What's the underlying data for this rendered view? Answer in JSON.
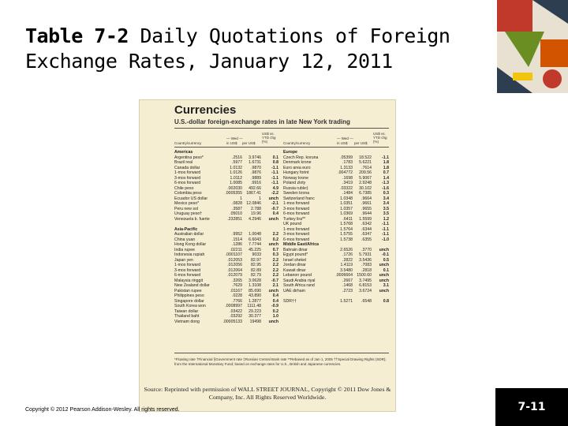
{
  "slide": {
    "title_num": "Table 7-2",
    "title_rest": " Daily Quotations of Foreign Exchange Rates, January 12, 2011",
    "copyright": "Copyright © 2012 Pearson Addison-Wesley. All rights reserved.",
    "page_number": "7-11",
    "accent_colors": [
      "#c0392b",
      "#6b8e23",
      "#2c3e50",
      "#d35400"
    ]
  },
  "scan": {
    "title": "Currencies",
    "subtitle": "U.S.-dollar foreign-exchange rates in late New York trading",
    "col_headers": {
      "country": "Country/currency",
      "wed": "— Wed —",
      "in_us": "in US$",
      "per_us": "per US$",
      "ytd": "US$ vs. YTD chg (%)"
    },
    "left": [
      {
        "name": "Americas",
        "sec": true
      },
      {
        "name": "Argentina peso*",
        "v1": ".2516",
        "v2": "3.9746",
        "v3": "0.1"
      },
      {
        "name": "Brazil real",
        "v1": ".5977",
        "v2": "1.6731",
        "v3": "0.8"
      },
      {
        "name": "Canada dollar",
        "v1": "1.0132",
        "v2": ".9870",
        "v3": "-1.1"
      },
      {
        "name": "1-mos forward",
        "v1": "1.0126",
        "v2": ".9876",
        "v3": "-1.1"
      },
      {
        "name": "3-mos forward",
        "v1": "1.0112",
        "v2": ".9889",
        "v3": "-1.1"
      },
      {
        "name": "6-mos forward",
        "v1": "1.0085",
        "v2": ".9916",
        "v3": "-1.1"
      },
      {
        "name": "Chile peso",
        "v1": ".002030",
        "v2": "492.66",
        "v3": "4.9"
      },
      {
        "name": "Colombia peso",
        "v1": ".0005355",
        "v2": "1867.41",
        "v3": "-2.2"
      },
      {
        "name": "Ecuador US dollar",
        "v1": "1",
        "v2": "1",
        "v3": "unch"
      },
      {
        "name": "Mexico peso*",
        "v1": ".0828",
        "v2": "12.0846",
        "v3": "-2.1"
      },
      {
        "name": "Peru new sol",
        "v1": ".3587",
        "v2": "2.788",
        "v3": "-0.7"
      },
      {
        "name": "Uruguay peso†",
        "v1": ".05010",
        "v2": "19.96",
        "v3": "0.4"
      },
      {
        "name": "Venezuela b. fuerte",
        "v1": ".232851",
        "v2": "4.2946",
        "v3": "unch"
      },
      {
        "name": "",
        "sec": true
      },
      {
        "name": "Asia-Pacific",
        "sec": true
      },
      {
        "name": "Australian dollar",
        "v1": ".9952",
        "v2": "1.0048",
        "v3": "2.2"
      },
      {
        "name": "China yuan",
        "v1": ".1514",
        "v2": "6.6043",
        "v3": "0.2"
      },
      {
        "name": "Hong Kong dollar",
        "v1": ".1286",
        "v2": "7.7744",
        "v3": "unch"
      },
      {
        "name": "India rupee",
        "v1": ".02211",
        "v2": "45.225",
        "v3": "0.7"
      },
      {
        "name": "Indonesia rupiah",
        "v1": ".0001107",
        "v2": "9033",
        "v3": "0.3"
      },
      {
        "name": "Japan yen",
        "v1": ".012053",
        "v2": "82.97",
        "v3": "2.2"
      },
      {
        "name": "1-mos forward",
        "v1": ".012056",
        "v2": "82.95",
        "v3": "2.2"
      },
      {
        "name": "3-mos forward",
        "v1": ".012064",
        "v2": "82.89",
        "v3": "2.2"
      },
      {
        "name": "6-mos forward",
        "v1": ".012079",
        "v2": "82.79",
        "v3": "2.2"
      },
      {
        "name": "Malaysia ringgit",
        "v1": ".3265",
        "v2": "3.0628",
        "v3": "-0.7"
      },
      {
        "name": "New Zealand dollar",
        "v1": ".7629",
        "v2": "1.3108",
        "v3": "2.1"
      },
      {
        "name": "Pakistan rupee",
        "v1": ".01167",
        "v2": "85.690",
        "v3": "unch"
      },
      {
        "name": "Philippines peso",
        "v1": ".0228",
        "v2": "43.890",
        "v3": "0.4"
      },
      {
        "name": "Singapore dollar",
        "v1": ".7766",
        "v2": "1.2877",
        "v3": "0.4"
      },
      {
        "name": "South Korea won",
        "v1": ".0008997",
        "v2": "1111.48",
        "v3": "-0.9"
      },
      {
        "name": "Taiwan dollar",
        "v1": ".03422",
        "v2": "29.223",
        "v3": "0.2"
      },
      {
        "name": "Thailand baht",
        "v1": ".03292",
        "v2": "30.377",
        "v3": "1.0"
      },
      {
        "name": "Vietnam dong",
        "v1": ".00005133",
        "v2": "19498",
        "v3": "unch"
      }
    ],
    "right": [
      {
        "name": "Europe",
        "sec": true
      },
      {
        "name": "Czech Rep. koruna",
        "v1": ".05399",
        "v2": "18.522",
        "v3": "-1.1"
      },
      {
        "name": "Denmark krone",
        "v1": ".1783",
        "v2": "5.6221",
        "v3": "1.8"
      },
      {
        "name": "Euro area euro",
        "v1": "1.3133",
        "v2": ".7614",
        "v3": "1.8"
      },
      {
        "name": "Hungary forint",
        "v1": ".004772",
        "v2": "209.56",
        "v3": "0.7"
      },
      {
        "name": "Norway krone",
        "v1": ".1698",
        "v2": "5.9067",
        "v3": "1.4"
      },
      {
        "name": "Poland zloty",
        "v1": ".3419",
        "v2": "2.9248",
        "v3": "-1.3"
      },
      {
        "name": "Russia ruble‡",
        "v1": ".03322",
        "v2": "30.102",
        "v3": "-1.6"
      },
      {
        "name": "Sweden krona",
        "v1": ".1484",
        "v2": "6.7385",
        "v3": "0.3"
      },
      {
        "name": "Switzerland franc",
        "v1": "1.0348",
        "v2": ".9664",
        "v3": "3.4"
      },
      {
        "name": "1-mos forward",
        "v1": "1.0351",
        "v2": ".9661",
        "v3": "3.4"
      },
      {
        "name": "3-mos forward",
        "v1": "1.0357",
        "v2": ".9655",
        "v3": "3.5"
      },
      {
        "name": "6-mos forward",
        "v1": "1.0369",
        "v2": ".9644",
        "v3": "3.5"
      },
      {
        "name": "Turkey lira**",
        "v1": ".6411",
        "v2": "1.5599",
        "v3": "1.2"
      },
      {
        "name": "UK pound",
        "v1": "1.5768",
        "v2": ".6342",
        "v3": "-1.1"
      },
      {
        "name": "1-mos forward",
        "v1": "1.5764",
        "v2": ".6344",
        "v3": "-1.1"
      },
      {
        "name": "3-mos forward",
        "v1": "1.5755",
        "v2": ".6347",
        "v3": "-1.1"
      },
      {
        "name": "6-mos forward",
        "v1": "1.5738",
        "v2": ".6355",
        "v3": "-1.0"
      },
      {
        "name": "Middle East/Africa",
        "sec": true
      },
      {
        "name": "Bahrain dinar",
        "v1": "2.6526",
        "v2": ".3770",
        "v3": "unch"
      },
      {
        "name": "Egypt pound*",
        "v1": ".1726",
        "v2": "5.7931",
        "v3": "-0.1"
      },
      {
        "name": "Israel shekel",
        "v1": ".2822",
        "v2": "3.5436",
        "v3": "0.5"
      },
      {
        "name": "Jordan dinar",
        "v1": "1.4119",
        "v2": ".7083",
        "v3": "unch"
      },
      {
        "name": "Kuwait dinar",
        "v1": "3.5480",
        "v2": ".2818",
        "v3": "0.1"
      },
      {
        "name": "Lebanon pound",
        "v1": ".0006664",
        "v2": "1500.60",
        "v3": "unch"
      },
      {
        "name": "Saudi Arabia riyal",
        "v1": ".2667",
        "v2": "3.7495",
        "v3": "unch"
      },
      {
        "name": "South Africa rand",
        "v1": ".1468",
        "v2": "6.8153",
        "v3": "3.1"
      },
      {
        "name": "UAE dirham",
        "v1": ".2723",
        "v2": "3.6724",
        "v3": "unch"
      },
      {
        "name": "",
        "sec": true
      },
      {
        "name": "SDR††",
        "v1": "1.5271",
        "v2": ".6548",
        "v3": "0.8"
      }
    ],
    "footnote": "*Floating rate †Financial §Government rate ‡Russian Central Bank rate **Rebased as of Jan 1, 2005 ††Special Drawing Rights (SDR); from the International Monetary Fund; based on exchange rates for U.S., British and Japanese currencies.",
    "source": "Source: Reprinted with permission of WALL STREET JOURNAL, Copyright © 2011 Dow Jones & Company, Inc. All Rights Reserved Worldwide."
  }
}
